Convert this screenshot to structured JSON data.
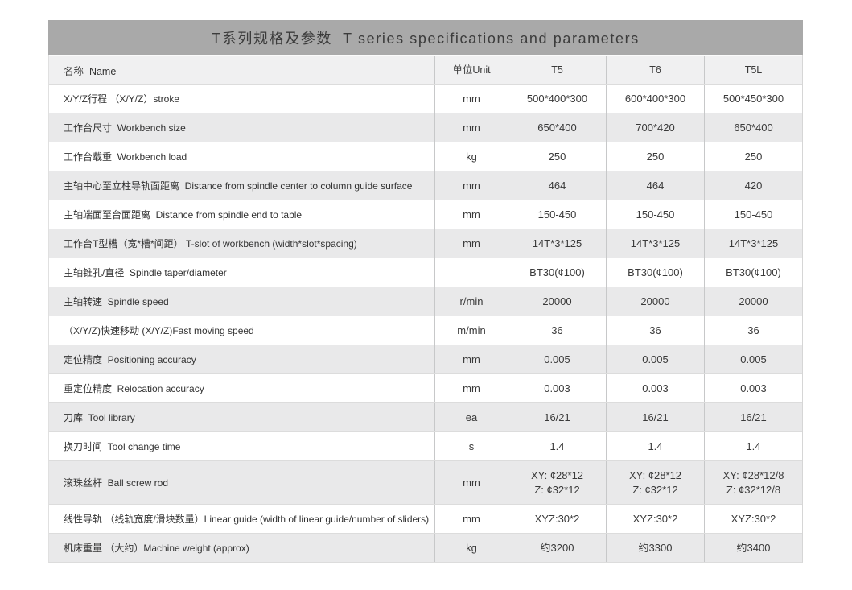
{
  "title": "T系列规格及参数  T series specifications and parameters",
  "table": {
    "headers": [
      "名称  Name",
      "单位Unit",
      "T5",
      "T6",
      "T5L"
    ],
    "rows": [
      {
        "name": "X/Y/Z行程 （X/Y/Z）stroke",
        "unit": "mm",
        "t5": "500*400*300",
        "t6": "600*400*300",
        "t5l": "500*450*300"
      },
      {
        "name": "工作台尺寸  Workbench size",
        "unit": "mm",
        "t5": "650*400",
        "t6": "700*420",
        "t5l": "650*400"
      },
      {
        "name": "工作台载重  Workbench load",
        "unit": "kg",
        "t5": "250",
        "t6": "250",
        "t5l": "250"
      },
      {
        "name": "主轴中心至立柱导轨面距离  Distance from spindle center to column guide surface",
        "unit": "mm",
        "t5": "464",
        "t6": "464",
        "t5l": "420"
      },
      {
        "name": "主轴端面至台面距离  Distance from spindle end to table",
        "unit": "mm",
        "t5": "150-450",
        "t6": "150-450",
        "t5l": "150-450"
      },
      {
        "name": "工作台T型槽（宽*槽*间距） T-slot of workbench (width*slot*spacing)",
        "unit": "mm",
        "t5": "14T*3*125",
        "t6": "14T*3*125",
        "t5l": "14T*3*125"
      },
      {
        "name": "主轴锥孔/直径  Spindle taper/diameter",
        "unit": "",
        "t5": "BT30(¢100)",
        "t6": "BT30(¢100)",
        "t5l": "BT30(¢100)"
      },
      {
        "name": "主轴转速  Spindle speed",
        "unit": "r/min",
        "t5": "20000",
        "t6": "20000",
        "t5l": "20000"
      },
      {
        "name": "（X/Y/Z)快速移动 (X/Y/Z)Fast moving speed",
        "unit": "m/min",
        "t5": "36",
        "t6": "36",
        "t5l": "36"
      },
      {
        "name": "定位精度  Positioning accuracy",
        "unit": "mm",
        "t5": "0.005",
        "t6": "0.005",
        "t5l": "0.005"
      },
      {
        "name": "重定位精度  Relocation accuracy",
        "unit": "mm",
        "t5": "0.003",
        "t6": "0.003",
        "t5l": "0.003"
      },
      {
        "name": "刀库  Tool library",
        "unit": "ea",
        "t5": "16/21",
        "t6": "16/21",
        "t5l": "16/21"
      },
      {
        "name": "换刀时间  Tool change time",
        "unit": "s",
        "t5": "1.4",
        "t6": "1.4",
        "t5l": "1.4"
      },
      {
        "name": "滚珠丝杆  Ball screw rod",
        "unit": "mm",
        "t5": "XY: ¢28*12\nZ: ¢32*12",
        "t6": "XY: ¢28*12\nZ: ¢32*12",
        "t5l": "XY: ¢28*12/8\nZ: ¢32*12/8"
      },
      {
        "name": "线性导轨 （线轨宽度/滑块数量）Linear guide (width of linear guide/number of sliders)",
        "unit": "mm",
        "t5": "XYZ:30*2",
        "t6": "XYZ:30*2",
        "t5l": "XYZ:30*2"
      },
      {
        "name": "机床重量 （大约）Machine weight (approx)",
        "unit": "kg",
        "t5": "约3200",
        "t6": "约3300",
        "t5l": "约3400"
      }
    ]
  }
}
